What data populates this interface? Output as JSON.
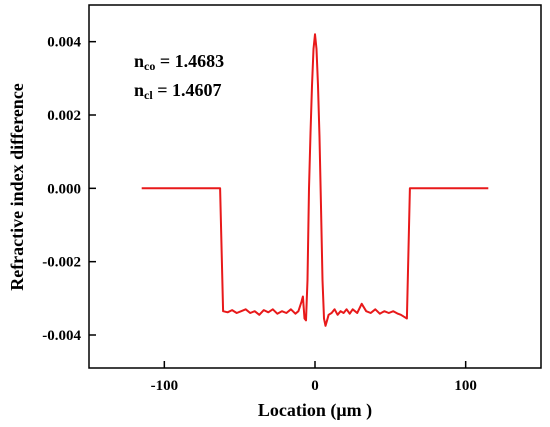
{
  "chart_data": {
    "type": "line",
    "title": "",
    "xlabel": "Location (μm )",
    "ylabel": "Refractive index difference",
    "xlim": [
      -150,
      150
    ],
    "ylim": [
      -0.0049,
      0.005
    ],
    "x_ticks": [
      -100,
      0,
      100
    ],
    "x_tick_labels": [
      "-100",
      "0",
      "100"
    ],
    "y_ticks": [
      0.004,
      0.002,
      0.0,
      -0.002,
      -0.004
    ],
    "y_tick_labels": [
      "0.004",
      "0.002",
      "0.000",
      "-0.002",
      "-0.004"
    ],
    "grid": false,
    "legend": "none",
    "annotations": [
      {
        "base": "n",
        "sub": "co",
        "text": " = 1.4683"
      },
      {
        "base": "n",
        "sub": "cl",
        "text": " = 1.4607"
      }
    ],
    "series": [
      {
        "color": "#e8191a",
        "x": [
          -115,
          -63,
          -61,
          -58,
          -55,
          -52,
          -49,
          -46,
          -43,
          -40,
          -37,
          -34,
          -31,
          -28,
          -25,
          -22,
          -19,
          -16,
          -13,
          -11,
          -9,
          -8,
          -7,
          -6,
          -5,
          -4,
          -3,
          -2,
          -1,
          0,
          1,
          2,
          3,
          4,
          5,
          6,
          7,
          8,
          9,
          11,
          13,
          15,
          17,
          19,
          21,
          23,
          25,
          28,
          31,
          34,
          37,
          40,
          43,
          46,
          49,
          52,
          55,
          57,
          59,
          61,
          63,
          115
        ],
        "y": [
          0.0,
          0.0,
          -0.00335,
          -0.00338,
          -0.00332,
          -0.0034,
          -0.00335,
          -0.0033,
          -0.0034,
          -0.00335,
          -0.00345,
          -0.00332,
          -0.00338,
          -0.0033,
          -0.00342,
          -0.00335,
          -0.0034,
          -0.0033,
          -0.00342,
          -0.00335,
          -0.0031,
          -0.00295,
          -0.00355,
          -0.0036,
          -0.0025,
          0.0,
          0.0015,
          0.0028,
          0.0038,
          0.0042,
          0.0038,
          0.0028,
          0.0014,
          -0.0005,
          -0.0025,
          -0.00355,
          -0.00375,
          -0.0036,
          -0.00345,
          -0.0034,
          -0.0033,
          -0.00345,
          -0.00335,
          -0.0034,
          -0.0033,
          -0.00342,
          -0.0033,
          -0.0034,
          -0.00315,
          -0.00335,
          -0.0034,
          -0.0033,
          -0.00342,
          -0.00335,
          -0.0034,
          -0.00335,
          -0.00342,
          -0.00345,
          -0.0035,
          -0.00355,
          0.0,
          0.0
        ]
      }
    ]
  }
}
